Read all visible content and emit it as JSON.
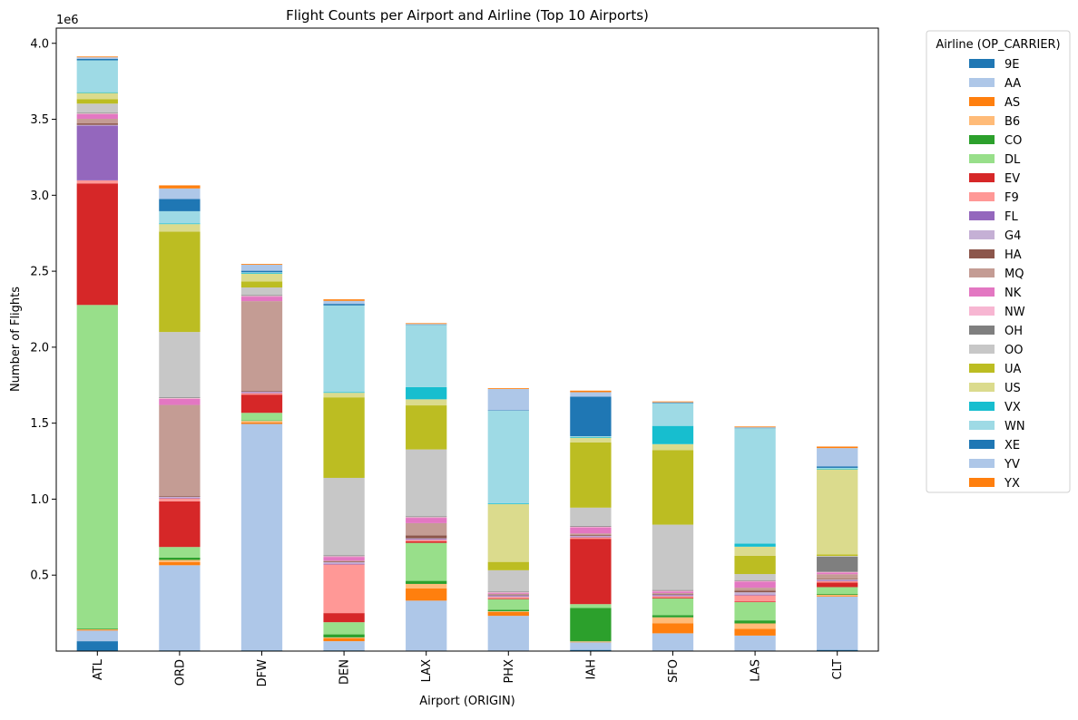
{
  "chart_data": {
    "type": "bar",
    "stacked": true,
    "title": "Flight Counts per Airport and Airline (Top 10 Airports)",
    "xlabel": "Airport (ORIGIN)",
    "ylabel": "Number of Flights",
    "y_offset_text": "1e6",
    "ylim": [
      0,
      4100000
    ],
    "yticks": [
      500000,
      1000000,
      1500000,
      2000000,
      2500000,
      3000000,
      3500000,
      4000000
    ],
    "ytick_labels": [
      "0.5",
      "1.0",
      "1.5",
      "2.0",
      "2.5",
      "3.0",
      "3.5",
      "4.0"
    ],
    "categories": [
      "ATL",
      "ORD",
      "DFW",
      "DEN",
      "LAX",
      "PHX",
      "IAH",
      "SFO",
      "LAS",
      "CLT"
    ],
    "legend": {
      "title": "Airline (OP_CARRIER)",
      "placement": "outside-right"
    },
    "series": [
      {
        "name": "9E",
        "color": "#1f77b4",
        "values": [
          65000,
          5000,
          5000,
          5000,
          2000,
          2000,
          8000,
          2000,
          2000,
          8000
        ]
      },
      {
        "name": "AA",
        "color": "#aec7e8",
        "values": [
          70000,
          560000,
          1490000,
          60000,
          330000,
          230000,
          50000,
          115000,
          100000,
          350000
        ]
      },
      {
        "name": "AS",
        "color": "#ff7f0e",
        "values": [
          5000,
          20000,
          10000,
          20000,
          80000,
          25000,
          3000,
          65000,
          45000,
          3000
        ]
      },
      {
        "name": "B6",
        "color": "#ffbb78",
        "values": [
          3000,
          15000,
          10000,
          5000,
          30000,
          5000,
          3000,
          40000,
          35000,
          10000
        ]
      },
      {
        "name": "CO",
        "color": "#2ca02c",
        "values": [
          5000,
          15000,
          3000,
          20000,
          20000,
          10000,
          220000,
          15000,
          20000,
          5000
        ]
      },
      {
        "name": "DL",
        "color": "#98df8a",
        "values": [
          2130000,
          70000,
          50000,
          80000,
          250000,
          70000,
          25000,
          110000,
          120000,
          45000
        ]
      },
      {
        "name": "EV",
        "color": "#d62728",
        "values": [
          800000,
          300000,
          120000,
          60000,
          10000,
          5000,
          430000,
          5000,
          5000,
          30000
        ]
      },
      {
        "name": "F9",
        "color": "#ff9896",
        "values": [
          20000,
          20000,
          10000,
          320000,
          10000,
          10000,
          10000,
          10000,
          40000,
          10000
        ]
      },
      {
        "name": "FL",
        "color": "#9467bd",
        "values": [
          360000,
          5000,
          5000,
          5000,
          5000,
          5000,
          5000,
          5000,
          5000,
          5000
        ]
      },
      {
        "name": "G4",
        "color": "#c5b0d5",
        "values": [
          5000,
          5000,
          5000,
          10000,
          5000,
          5000,
          5000,
          5000,
          15000,
          5000
        ]
      },
      {
        "name": "HA",
        "color": "#8c564b",
        "values": [
          10000,
          5000,
          5000,
          5000,
          20000,
          5000,
          5000,
          5000,
          10000,
          5000
        ]
      },
      {
        "name": "MQ",
        "color": "#c49c94",
        "values": [
          30000,
          600000,
          590000,
          5000,
          80000,
          5000,
          10000,
          5000,
          20000,
          30000
        ]
      },
      {
        "name": "NK",
        "color": "#e377c2",
        "values": [
          30000,
          40000,
          30000,
          25000,
          35000,
          5000,
          40000,
          10000,
          40000,
          10000
        ]
      },
      {
        "name": "NW",
        "color": "#f7b6d2",
        "values": [
          5000,
          5000,
          5000,
          5000,
          5000,
          5000,
          5000,
          5000,
          5000,
          5000
        ]
      },
      {
        "name": "OH",
        "color": "#7f7f7f",
        "values": [
          5000,
          5000,
          5000,
          5000,
          5000,
          5000,
          5000,
          5000,
          5000,
          100000
        ]
      },
      {
        "name": "OO",
        "color": "#c7c7c7",
        "values": [
          60000,
          430000,
          50000,
          510000,
          440000,
          140000,
          120000,
          430000,
          40000,
          5000
        ]
      },
      {
        "name": "UA",
        "color": "#bcbd22",
        "values": [
          30000,
          660000,
          40000,
          530000,
          290000,
          55000,
          430000,
          490000,
          120000,
          10000
        ]
      },
      {
        "name": "US",
        "color": "#dbdb8d",
        "values": [
          40000,
          50000,
          50000,
          30000,
          40000,
          380000,
          30000,
          40000,
          60000,
          560000
        ]
      },
      {
        "name": "VX",
        "color": "#17becf",
        "values": [
          5000,
          5000,
          5000,
          5000,
          80000,
          5000,
          5000,
          120000,
          20000,
          5000
        ]
      },
      {
        "name": "WN",
        "color": "#9edae5",
        "values": [
          210000,
          80000,
          5000,
          570000,
          410000,
          610000,
          5000,
          150000,
          760000,
          5000
        ]
      },
      {
        "name": "XE",
        "color": "#1f77b4",
        "values": [
          10000,
          80000,
          10000,
          10000,
          3000,
          3000,
          260000,
          3000,
          3000,
          10000
        ]
      },
      {
        "name": "YV",
        "color": "#aec7e8",
        "values": [
          10000,
          70000,
          40000,
          20000,
          3000,
          140000,
          30000,
          3000,
          3000,
          120000
        ]
      },
      {
        "name": "YX",
        "color": "#ff7f0e",
        "values": [
          5000,
          20000,
          5000,
          10000,
          5000,
          5000,
          10000,
          5000,
          5000,
          10000
        ]
      }
    ]
  }
}
